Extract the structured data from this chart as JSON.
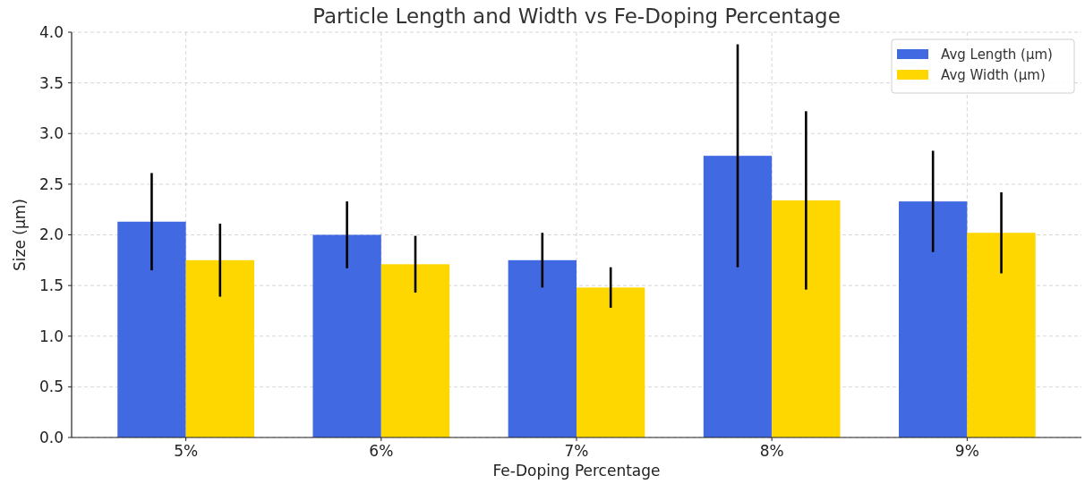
{
  "chart_data": {
    "type": "bar",
    "title": "Particle Length and Width vs Fe-Doping Percentage",
    "xlabel": "Fe-Doping Percentage",
    "ylabel": "Size (µm)",
    "categories": [
      "5%",
      "6%",
      "7%",
      "8%",
      "9%"
    ],
    "series": [
      {
        "name": "Avg Length (µm)",
        "color": "#4169e1",
        "values": [
          2.13,
          2.0,
          1.75,
          2.78,
          2.33
        ],
        "errors": [
          0.48,
          0.33,
          0.27,
          1.1,
          0.5
        ]
      },
      {
        "name": "Avg Width (µm)",
        "color": "#ffd700",
        "values": [
          1.75,
          1.71,
          1.48,
          2.34,
          2.02
        ],
        "errors": [
          0.36,
          0.28,
          0.2,
          0.88,
          0.4
        ]
      }
    ],
    "ylim": [
      0,
      4
    ],
    "yticks": [
      {
        "value": 0,
        "label": "0.0"
      },
      0.5,
      {
        "value": 1,
        "label": "1.0"
      },
      1.5,
      {
        "value": 2,
        "label": "2.0"
      },
      2.5,
      {
        "value": 3,
        "label": "3.0"
      },
      3.5,
      {
        "value": 4,
        "label": "4.0"
      }
    ],
    "grid": true,
    "legend": "top right"
  }
}
